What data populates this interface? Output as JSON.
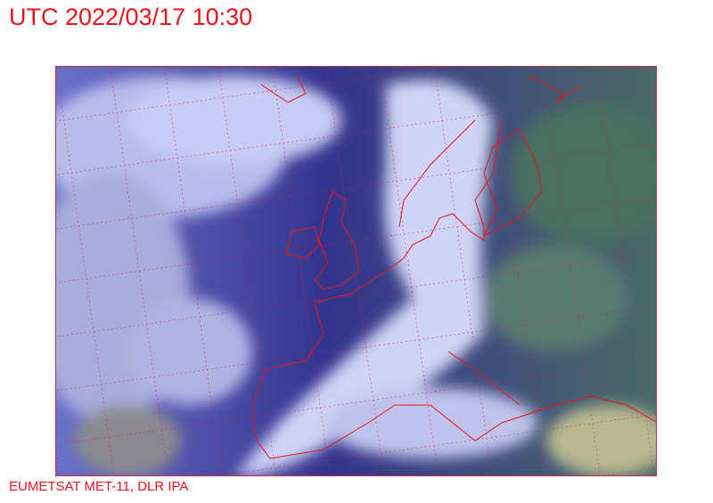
{
  "header": {
    "title": "UTC 2022/03/17 10:30"
  },
  "footer": {
    "credit": "EUMETSAT MET-11, DLR IPA"
  },
  "map": {
    "type": "satellite-image",
    "overlays": [
      "coastlines",
      "country-borders",
      "lat-lon-grid"
    ],
    "colors": {
      "coastline": "#e8141a",
      "grid": "#d02050",
      "cloud": "#c8ccf4",
      "sea": "#2a2a8a",
      "land": "#4e7a6a"
    }
  }
}
